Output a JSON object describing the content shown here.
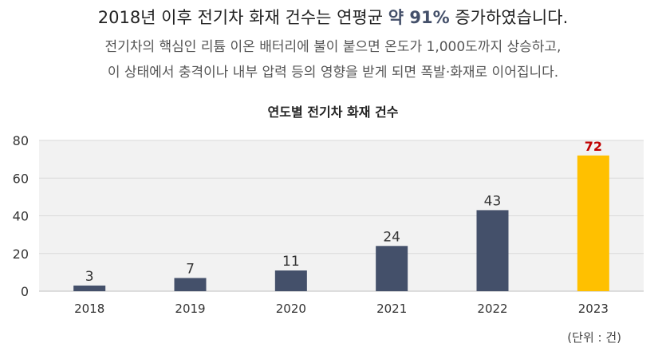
{
  "header": {
    "headline_prefix": "2018년 이후 전기차 화재 건수는 연평균",
    "headline_highlight": "약 91%",
    "headline_suffix": "증가하였습니다.",
    "description_line1": "전기차의 핵심인 리튬 이온 배터리에 불이 붙으면 온도가 1,000도까지 상승하고,",
    "description_line2": "이 상태에서 충격이나 내부 압력 등의 영향을 받게 되면 폭발·화재로 이어집니다."
  },
  "chart_data": {
    "type": "bar",
    "title": "연도별 전기차 화재 건수",
    "categories": [
      "2018",
      "2019",
      "2020",
      "2021",
      "2022",
      "2023"
    ],
    "values": [
      3,
      7,
      11,
      24,
      43,
      72
    ],
    "data_labels": [
      "3",
      "7",
      "11",
      "24",
      "43",
      "72"
    ],
    "ylim": [
      0,
      80
    ],
    "yticks": [
      0,
      20,
      40,
      60,
      80
    ],
    "ytick_labels": [
      "0",
      "20",
      "40",
      "60",
      "80"
    ],
    "grid": true,
    "unit_note": "(단위 : 건)",
    "colors": {
      "bar": "#44506a",
      "highlight_bar": "#ffc000",
      "highlight_label": "#c00000",
      "label": "#333333",
      "grid": "#d9d9d9",
      "plot_bg": "#f2f2f2"
    },
    "highlight_index": 5
  }
}
